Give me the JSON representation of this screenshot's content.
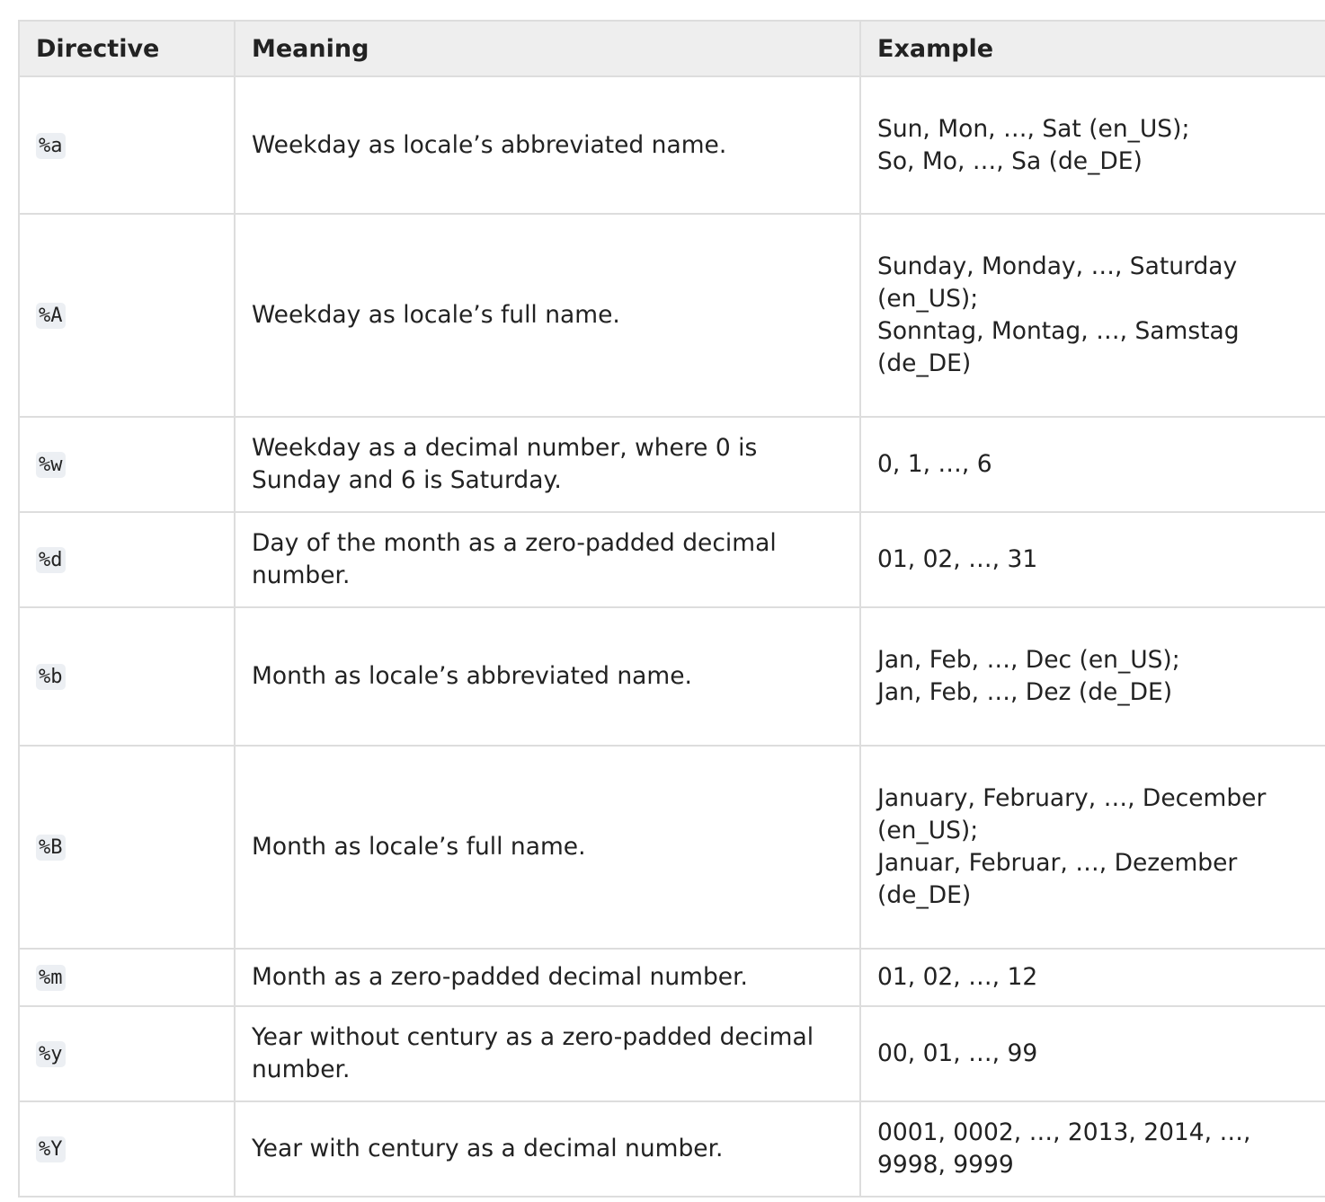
{
  "table": {
    "headers": [
      "Directive",
      "Meaning",
      "Example"
    ],
    "rows": [
      {
        "directive": "%a",
        "meaning": "Weekday as locale’s abbreviated name.",
        "example": [
          "Sun, Mon, …, Sat (en_US);",
          "So, Mo, …, Sa (de_DE)"
        ]
      },
      {
        "directive": "%A",
        "meaning": "Weekday as locale’s full name.",
        "example": [
          "Sunday, Monday, …, Saturday (en_US);",
          "Sonntag, Montag, …, Samstag (de_DE)"
        ]
      },
      {
        "directive": "%w",
        "meaning": "Weekday as a decimal number, where 0 is Sunday and 6 is Saturday.",
        "example": [
          "0, 1, …, 6"
        ]
      },
      {
        "directive": "%d",
        "meaning": "Day of the month as a zero-padded decimal number.",
        "example": [
          "01, 02, …, 31"
        ]
      },
      {
        "directive": "%b",
        "meaning": "Month as locale’s abbreviated name.",
        "example": [
          "Jan, Feb, …, Dec (en_US);",
          "Jan, Feb, …, Dez (de_DE)"
        ]
      },
      {
        "directive": "%B",
        "meaning": "Month as locale’s full name.",
        "example": [
          "January, February, …, December (en_US);",
          "Januar, Februar, …, Dezember (de_DE)"
        ]
      },
      {
        "directive": "%m",
        "meaning": "Month as a zero-padded decimal number.",
        "example": [
          "01, 02, …, 12"
        ]
      },
      {
        "directive": "%y",
        "meaning": "Year without century as a zero-padded decimal number.",
        "example": [
          "00, 01, …, 99"
        ]
      },
      {
        "directive": "%Y",
        "meaning": "Year with century as a decimal number.",
        "example": [
          "0001, 0002, …, 2013, 2014, …, 9998, 9999"
        ]
      }
    ]
  }
}
